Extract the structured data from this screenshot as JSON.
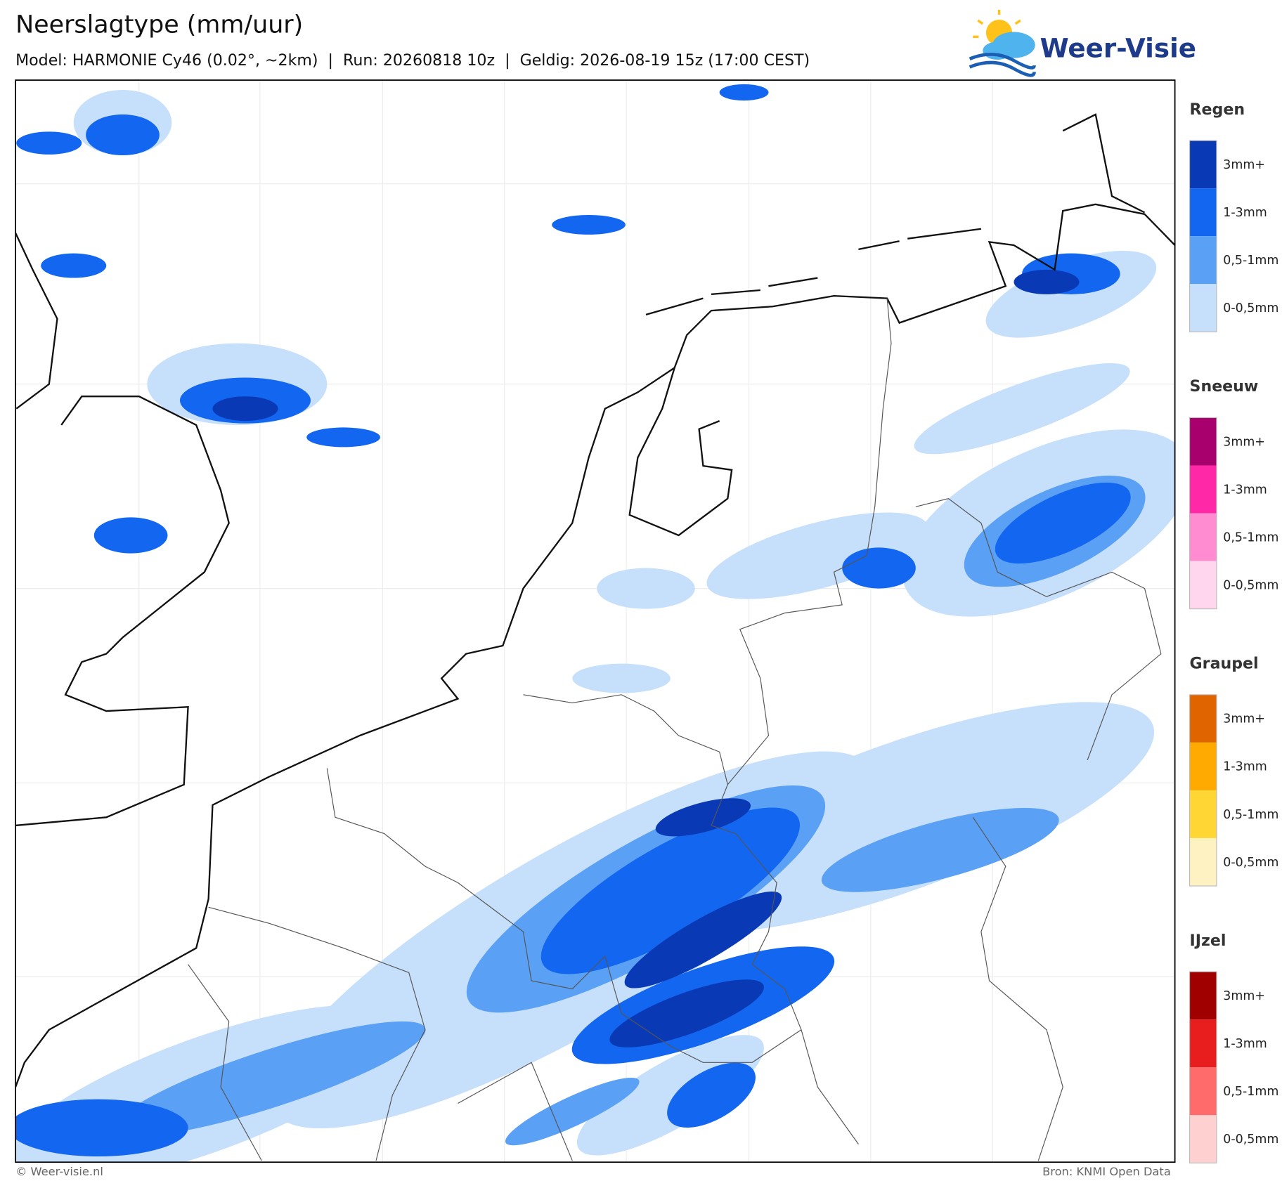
{
  "header": {
    "title": "Neerslagtype (mm/uur)",
    "subtitle": "Model: HARMONIE Cy46 (0.02°, ~2km)  |  Run: 20260818 10z  |  Geldig: 2026-08-19 15z (17:00 CEST)",
    "logo": "Weer-Visie"
  },
  "legend": [
    {
      "title": "Regen",
      "labels": [
        "3mm+",
        "1-3mm",
        "0,5-1mm",
        "0-0,5mm"
      ],
      "colors": [
        "#0a39b5",
        "#1366f0",
        "#5aa0f5",
        "#c6dffb"
      ]
    },
    {
      "title": "Sneeuw",
      "labels": [
        "3mm+",
        "1-3mm",
        "0,5-1mm",
        "0-0,5mm"
      ],
      "colors": [
        "#a8006c",
        "#ff28a6",
        "#ff8cd0",
        "#ffd6ee"
      ]
    },
    {
      "title": "Graupel",
      "labels": [
        "3mm+",
        "1-3mm",
        "0,5-1mm",
        "0-0,5mm"
      ],
      "colors": [
        "#e06400",
        "#ffaa00",
        "#ffd633",
        "#fff2c2"
      ]
    },
    {
      "title": "IJzel",
      "labels": [
        "3mm+",
        "1-3mm",
        "0,5-1mm",
        "0-0,5mm"
      ],
      "colors": [
        "#a00000",
        "#e81e1e",
        "#ff6a6a",
        "#ffd0d0"
      ]
    }
  ],
  "footer": {
    "left": "© Weer-visie.nl",
    "right": "Bron: KNMI Open Data"
  }
}
